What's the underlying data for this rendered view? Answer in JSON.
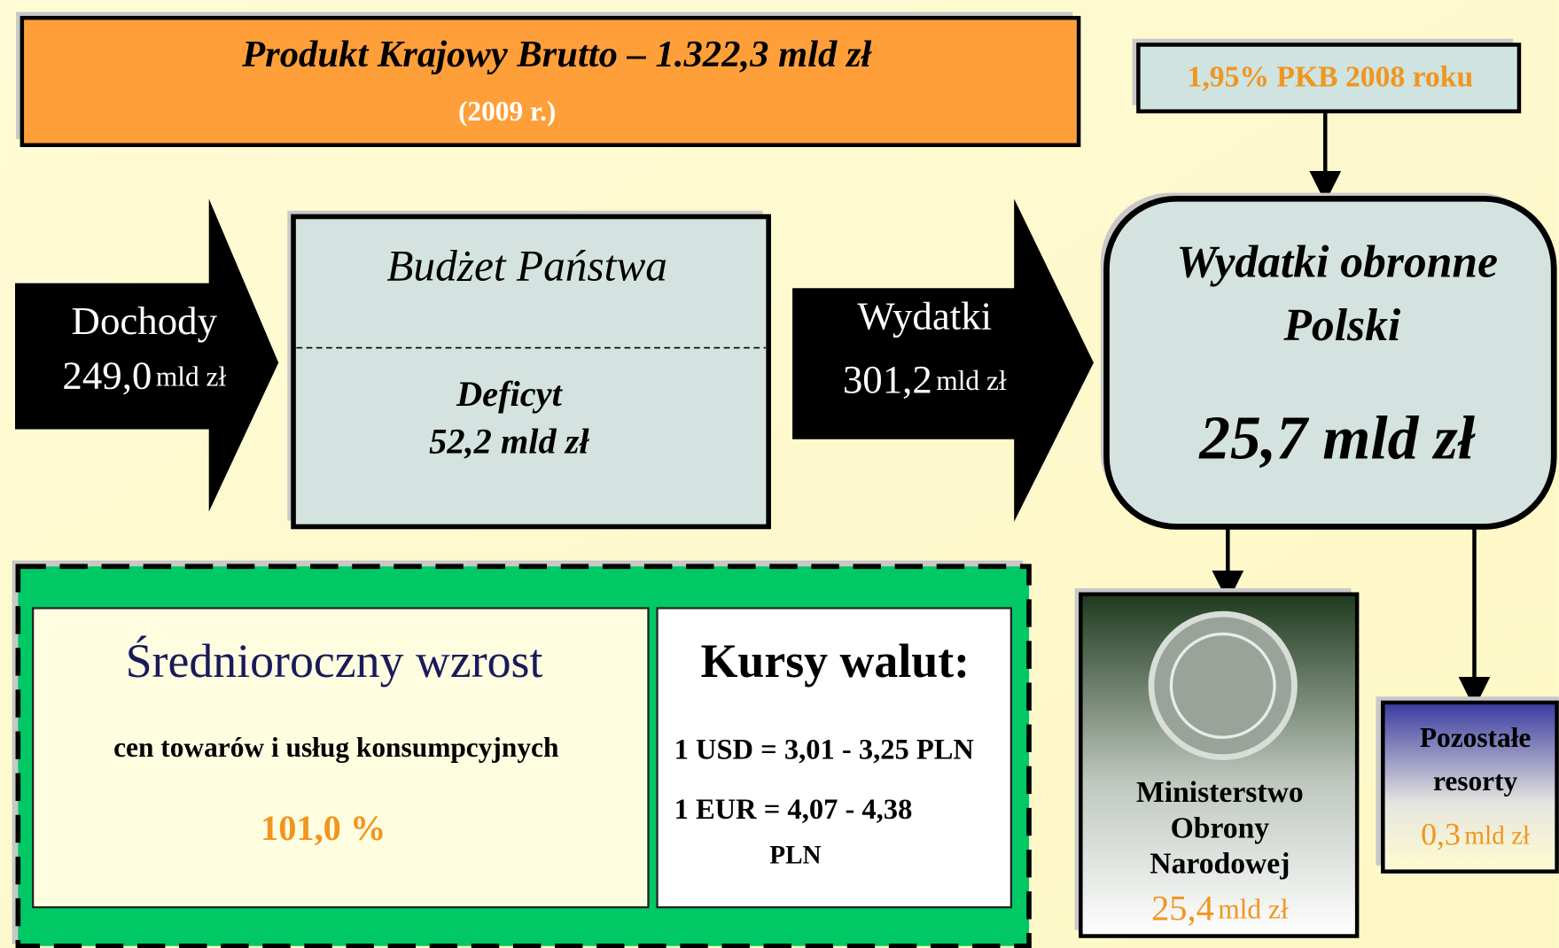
{
  "gdp": {
    "title": "Produkt Krajowy Brutto – 1.322,3 mld zł",
    "year": "(2009 r.)"
  },
  "income": {
    "label": "Dochody",
    "value": "249,0",
    "unit": "mld zł"
  },
  "budget": {
    "title": "Budżet Państwa",
    "deficit_label": "Deficyt",
    "deficit_value": "52,2 mld zł"
  },
  "expenses": {
    "label": "Wydatki",
    "value": "301,2",
    "unit": "mld zł"
  },
  "gdp_share": "1,95% PKB 2008 roku",
  "defense": {
    "title_lines": [
      "Wydatki obronne",
      "Polski"
    ],
    "value": "25,7 mld zł"
  },
  "mod": {
    "name_lines": [
      "Ministerstwo",
      "Obrony",
      "Narodowej"
    ],
    "value": "25,4",
    "unit": "mld zł"
  },
  "other": {
    "name_lines": [
      "Pozostałe",
      "resorty"
    ],
    "value": "0,3",
    "unit": "mld zł"
  },
  "inflation": {
    "title": "Średnioroczny wzrost",
    "subtitle": "cen towarów i usług konsumpcyjnych",
    "value": "101,0 %"
  },
  "rates": {
    "title": "Kursy walut:",
    "lines": [
      "1 USD = 3,01 - 3,25 PLN",
      "1 EUR = 4,07 - 4,38",
      "PLN"
    ]
  }
}
